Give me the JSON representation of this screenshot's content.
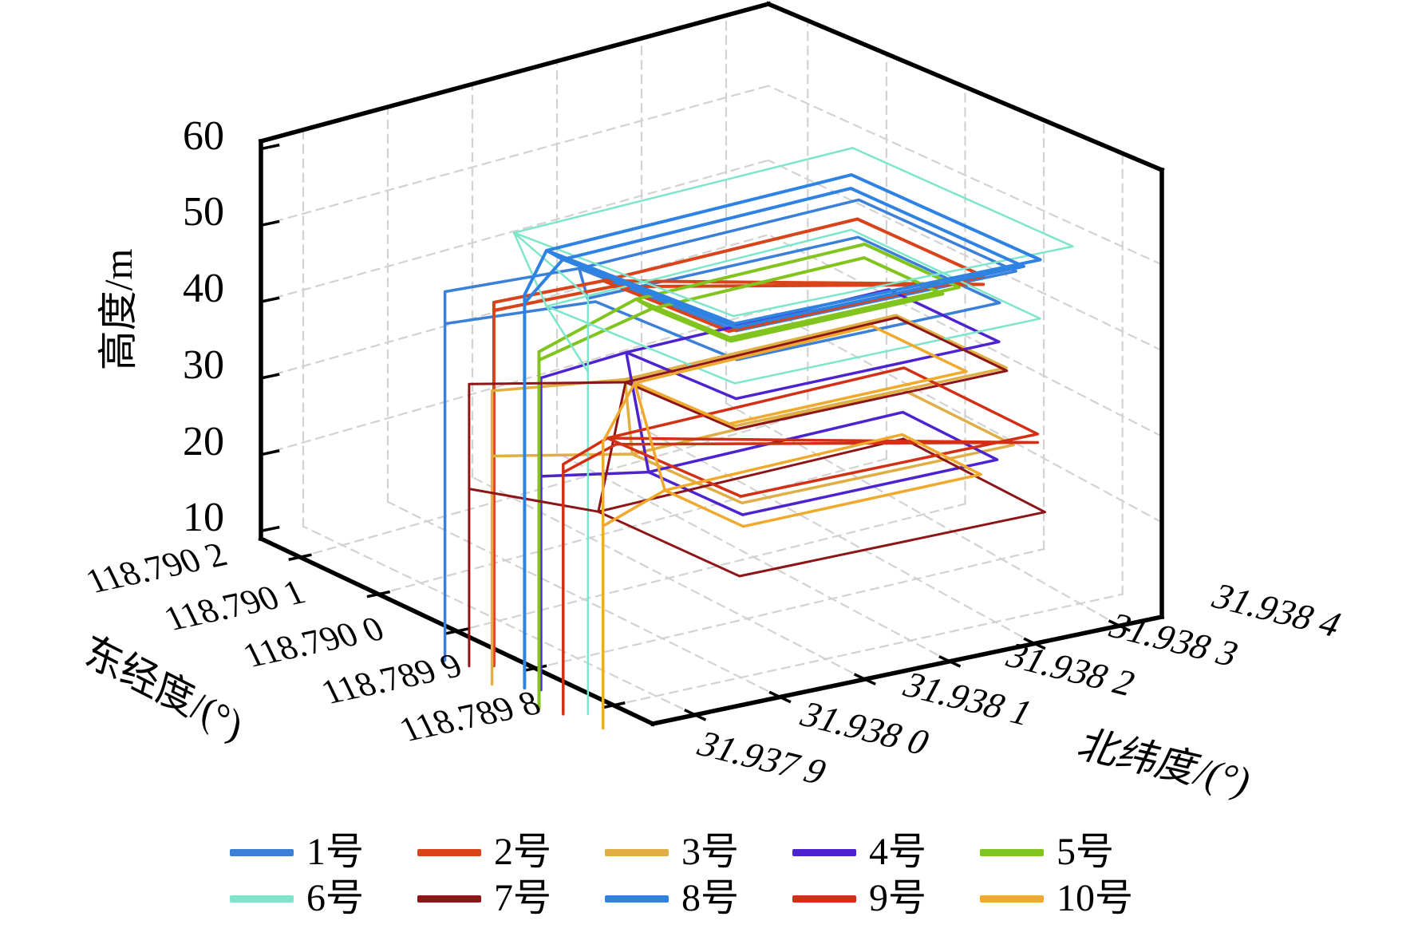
{
  "figure": {
    "title": "",
    "zlabel": "高度/m",
    "xlabel": "东经度/(°)",
    "ylabel": "北纬度/(°)"
  },
  "chart_data": {
    "type": "line",
    "projection": "3d",
    "title": "",
    "xlabel": "东经度/(°)",
    "ylabel": "北纬度/(°)",
    "zlabel": "高度/m",
    "grid": "dashed",
    "legend_position": "bottom",
    "x_range": [
      118.78975,
      118.79025
    ],
    "y_range": [
      31.93785,
      31.93845
    ],
    "z_range": [
      9,
      61
    ],
    "x_ticks": {
      "labels": [
        "118.790 2",
        "118.790 1",
        "118.790 0",
        "118.789 9",
        "118.789 8"
      ],
      "values": [
        118.7902,
        118.7901,
        118.79,
        118.7899,
        118.7898
      ]
    },
    "y_ticks": {
      "labels": [
        "31.937 9",
        "31.938 0",
        "31.938 1",
        "31.938 2",
        "31.938 3",
        "31.938 4"
      ],
      "values": [
        31.9379,
        31.938,
        31.9381,
        31.9382,
        31.9383,
        31.9384
      ]
    },
    "z_ticks": {
      "labels": [
        "60",
        "50",
        "40",
        "30",
        "20",
        "10"
      ],
      "values": [
        60,
        50,
        40,
        30,
        20,
        10
      ]
    },
    "z_gridlines": [
      20,
      30,
      40,
      50
    ],
    "series": [
      {
        "name": "1号",
        "color": "#3a7fd8",
        "width": 3.5,
        "points": [
          [
            118.79008,
            31.93791,
            0
          ],
          [
            118.79008,
            31.93791,
            46
          ],
          [
            118.79006,
            31.93805,
            46
          ],
          [
            118.79006,
            31.93838,
            46
          ],
          [
            118.78986,
            31.93838,
            46
          ],
          [
            118.78986,
            31.93805,
            46
          ],
          [
            118.79006,
            31.93805,
            46
          ],
          [
            118.79006,
            31.93806,
            42
          ],
          [
            118.79005,
            31.93837,
            42
          ],
          [
            118.78987,
            31.93837,
            42
          ],
          [
            118.78987,
            31.93806,
            42
          ],
          [
            118.79005,
            31.93806,
            42
          ],
          [
            118.79008,
            31.93791,
            42
          ],
          [
            118.79008,
            31.93791,
            0
          ]
        ]
      },
      {
        "name": "2号",
        "color": "#d8431a",
        "width": 4,
        "points": [
          [
            118.79005,
            31.93794,
            0
          ],
          [
            118.79005,
            31.93794,
            45
          ],
          [
            118.79004,
            31.93806,
            45
          ],
          [
            118.79004,
            31.93836,
            45
          ],
          [
            118.78988,
            31.93836,
            45
          ],
          [
            118.78988,
            31.93806,
            45
          ],
          [
            118.79004,
            31.93806,
            45
          ],
          [
            118.78988,
            31.93836,
            44
          ],
          [
            118.79004,
            31.93807,
            44
          ],
          [
            118.79005,
            31.93794,
            44
          ],
          [
            118.79005,
            31.93794,
            0
          ]
        ]
      },
      {
        "name": "3号",
        "color": "#dfae44",
        "width": 3.5,
        "points": [
          [
            118.79002,
            31.93791,
            0
          ],
          [
            118.79002,
            31.93791,
            36
          ],
          [
            118.78998,
            31.93803,
            36
          ],
          [
            118.78998,
            31.93835,
            36
          ],
          [
            118.78984,
            31.93835,
            36
          ],
          [
            118.78984,
            31.93803,
            36
          ],
          [
            118.78998,
            31.93803,
            36
          ],
          [
            118.78996,
            31.93802,
            28
          ],
          [
            118.78996,
            31.93834,
            28
          ],
          [
            118.78982,
            31.93834,
            28
          ],
          [
            118.78982,
            31.93802,
            28
          ],
          [
            118.78996,
            31.93802,
            28
          ],
          [
            118.79002,
            31.93791,
            28
          ],
          [
            118.79002,
            31.93791,
            0
          ]
        ]
      },
      {
        "name": "4号",
        "color": "#4d22cf",
        "width": 3.5,
        "points": [
          [
            118.78999,
            31.93794,
            0
          ],
          [
            118.78999,
            31.93794,
            38
          ],
          [
            118.79,
            31.93805,
            38
          ],
          [
            118.79,
            31.93836,
            38
          ],
          [
            118.78986,
            31.93836,
            38
          ],
          [
            118.78986,
            31.93805,
            38
          ],
          [
            118.79,
            31.93805,
            38
          ],
          [
            118.78995,
            31.93803,
            26
          ],
          [
            118.78995,
            31.93833,
            26
          ],
          [
            118.78983,
            31.93833,
            26
          ],
          [
            118.78983,
            31.93803,
            26
          ],
          [
            118.78995,
            31.93803,
            26
          ],
          [
            118.78999,
            31.93794,
            26
          ],
          [
            118.78999,
            31.93794,
            0
          ]
        ]
      },
      {
        "name": "5号",
        "color": "#82c41e",
        "width": 4,
        "points": [
          [
            118.78996,
            31.93791,
            0
          ],
          [
            118.78996,
            31.93791,
            43
          ],
          [
            118.79002,
            31.93808,
            43
          ],
          [
            118.79002,
            31.93835,
            43
          ],
          [
            118.7899,
            31.93835,
            43
          ],
          [
            118.7899,
            31.93808,
            43
          ],
          [
            118.79002,
            31.93808,
            43
          ],
          [
            118.79001,
            31.93809,
            42
          ],
          [
            118.79001,
            31.93834,
            42
          ],
          [
            118.78991,
            31.93834,
            42
          ],
          [
            118.78991,
            31.93809,
            42
          ],
          [
            118.79001,
            31.93809,
            42
          ],
          [
            118.78996,
            31.93791,
            42
          ],
          [
            118.78996,
            31.93791,
            0
          ]
        ]
      },
      {
        "name": "6号",
        "color": "#7de6ca",
        "width": 2.5,
        "points": [
          [
            118.78993,
            31.93794,
            0
          ],
          [
            118.78993,
            31.93794,
            50
          ],
          [
            118.7901,
            31.93801,
            50
          ],
          [
            118.7901,
            31.93841,
            50
          ],
          [
            118.78982,
            31.93841,
            50
          ],
          [
            118.78982,
            31.93801,
            50
          ],
          [
            118.7901,
            31.93801,
            50
          ],
          [
            118.79008,
            31.93803,
            41
          ],
          [
            118.79008,
            31.93839,
            41
          ],
          [
            118.78984,
            31.93839,
            41
          ],
          [
            118.78984,
            31.93803,
            41
          ],
          [
            118.79008,
            31.93803,
            41
          ],
          [
            118.78993,
            31.93794,
            41
          ],
          [
            118.78993,
            31.93794,
            0
          ]
        ]
      },
      {
        "name": "7号",
        "color": "#8d1417",
        "width": 3,
        "points": [
          [
            118.79006,
            31.93792,
            0
          ],
          [
            118.79006,
            31.93792,
            35
          ],
          [
            118.78999,
            31.93804,
            35
          ],
          [
            118.78999,
            31.93836,
            35
          ],
          [
            118.78985,
            31.93836,
            35
          ],
          [
            118.78985,
            31.93804,
            35
          ],
          [
            118.78999,
            31.93804,
            35
          ],
          [
            118.78996,
            31.93798,
            22
          ],
          [
            118.78996,
            31.93834,
            22
          ],
          [
            118.78978,
            31.93834,
            22
          ],
          [
            118.78978,
            31.93798,
            22
          ],
          [
            118.78996,
            31.93798,
            22
          ],
          [
            118.79006,
            31.93792,
            22
          ],
          [
            118.79006,
            31.93792,
            0
          ]
        ]
      },
      {
        "name": "8号",
        "color": "#2e82e2",
        "width": 4,
        "points": [
          [
            118.79,
            31.93793,
            0
          ],
          [
            118.79,
            31.93793,
            48
          ],
          [
            118.79008,
            31.93803,
            48
          ],
          [
            118.79008,
            31.93839,
            48
          ],
          [
            118.78984,
            31.93839,
            48
          ],
          [
            118.78984,
            31.93803,
            48
          ],
          [
            118.79008,
            31.93803,
            48
          ],
          [
            118.79007,
            31.93804,
            47
          ],
          [
            118.79007,
            31.93838,
            47
          ],
          [
            118.78985,
            31.93838,
            47
          ],
          [
            118.78985,
            31.93804,
            47
          ],
          [
            118.79007,
            31.93804,
            47
          ],
          [
            118.79,
            31.93793,
            47
          ],
          [
            118.79,
            31.93793,
            0
          ]
        ]
      },
      {
        "name": "9号",
        "color": "#d32f14",
        "width": 3.5,
        "points": [
          [
            118.78994,
            31.93792,
            0
          ],
          [
            118.78994,
            31.93792,
            30
          ],
          [
            118.78997,
            31.938,
            30
          ],
          [
            118.78997,
            31.93835,
            30
          ],
          [
            118.7898,
            31.93835,
            30
          ],
          [
            118.7898,
            31.938,
            30
          ],
          [
            118.78997,
            31.938,
            30
          ],
          [
            118.7898,
            31.93835,
            29
          ],
          [
            118.78997,
            31.93801,
            29
          ],
          [
            118.78994,
            31.93792,
            29
          ],
          [
            118.78994,
            31.93792,
            0
          ]
        ]
      },
      {
        "name": "10号",
        "color": "#efa92c",
        "width": 3.5,
        "points": [
          [
            118.7899,
            31.93793,
            0
          ],
          [
            118.7899,
            31.93793,
            34
          ],
          [
            118.79,
            31.93806,
            34
          ],
          [
            118.79,
            31.93834,
            34
          ],
          [
            118.78988,
            31.93834,
            34
          ],
          [
            118.78988,
            31.93806,
            34
          ],
          [
            118.79,
            31.93806,
            34
          ],
          [
            118.78994,
            31.93804,
            24
          ],
          [
            118.78994,
            31.93832,
            24
          ],
          [
            118.78984,
            31.93832,
            24
          ],
          [
            118.78984,
            31.93804,
            24
          ],
          [
            118.78994,
            31.93804,
            24
          ],
          [
            118.7899,
            31.93793,
            24
          ],
          [
            118.7899,
            31.93793,
            0
          ]
        ]
      }
    ]
  },
  "legend": {
    "rows": [
      [
        {
          "label": "1号",
          "color": "#3a7fd8"
        },
        {
          "label": "2号",
          "color": "#d8431a"
        },
        {
          "label": "3号",
          "color": "#dfae44"
        },
        {
          "label": "4号",
          "color": "#4d22cf"
        },
        {
          "label": "5号",
          "color": "#82c41e"
        }
      ],
      [
        {
          "label": "6号",
          "color": "#7de6ca"
        },
        {
          "label": "7号",
          "color": "#8d1417"
        },
        {
          "label": "8号",
          "color": "#2e82e2"
        },
        {
          "label": "9号",
          "color": "#d32f14"
        },
        {
          "label": "10号",
          "color": "#efa92c"
        }
      ]
    ]
  },
  "colors": {
    "grid": "#d2d2d2",
    "box_edge": "#000000",
    "background": "#ffffff"
  }
}
